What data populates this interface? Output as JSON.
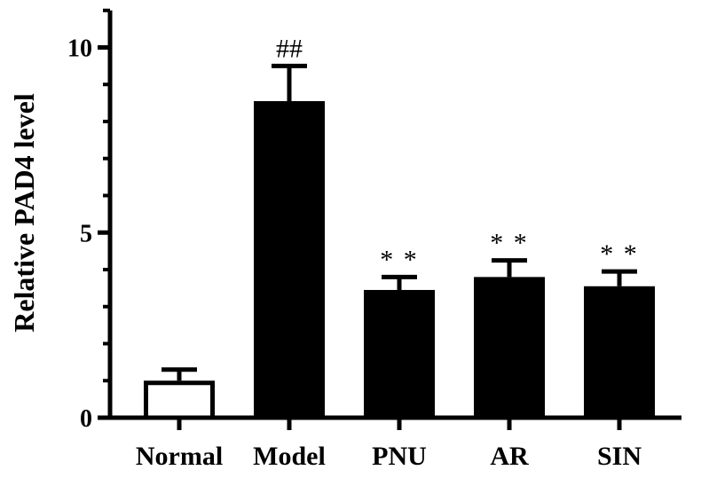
{
  "chart_data": {
    "type": "bar",
    "categories": [
      "Normal",
      "Model",
      "PNU",
      "AR",
      "SIN"
    ],
    "values": [
      1.0,
      8.55,
      3.45,
      3.8,
      3.55
    ],
    "errors": [
      0.3,
      0.95,
      0.35,
      0.45,
      0.4
    ],
    "fills": [
      "#ffffff",
      "#000000",
      "#000000",
      "#000000",
      "#000000"
    ],
    "annotations": [
      "",
      "##",
      "**",
      "**",
      "**"
    ],
    "title": "",
    "xlabel": "",
    "ylabel": "Relative PAD4 level",
    "ylim": [
      0,
      11
    ],
    "yticks": [
      0,
      5,
      10
    ],
    "ytick_labels": [
      "0",
      "5",
      "10"
    ],
    "grid": false,
    "legend": "none"
  }
}
